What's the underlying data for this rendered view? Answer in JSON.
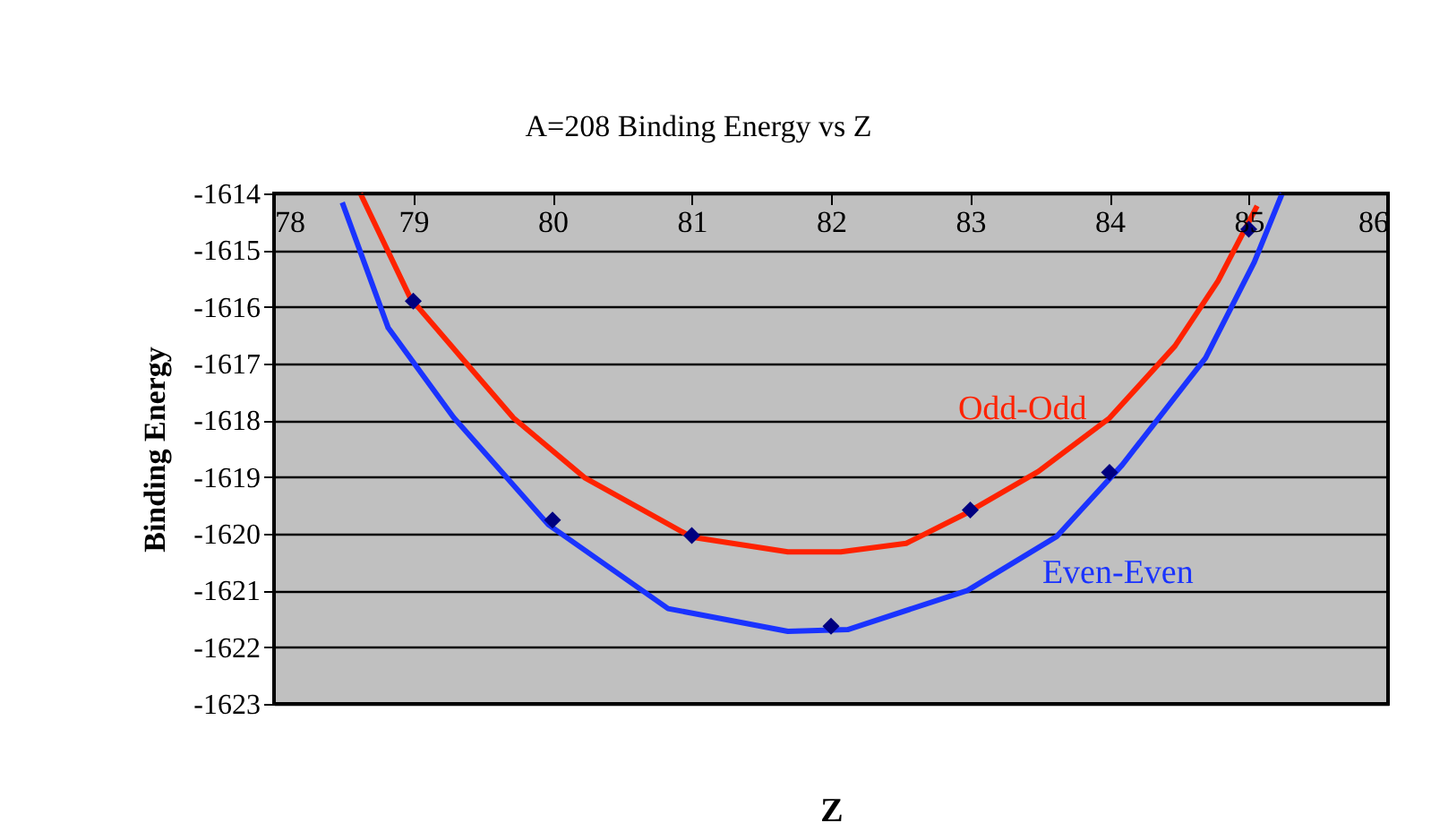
{
  "chart_data": {
    "type": "line",
    "title": "A=208 Binding Energy vs Z",
    "xlabel": "Z",
    "ylabel": "Binding Energy",
    "xlim": [
      78,
      86
    ],
    "xticks": [
      78,
      79,
      80,
      81,
      82,
      83,
      84,
      85,
      86
    ],
    "ylim": [
      -1623,
      -1614
    ],
    "yticks": [
      -1623,
      -1622,
      -1621,
      -1620,
      -1619,
      -1618,
      -1617,
      -1616,
      -1615,
      -1614
    ],
    "grid": "y",
    "series": [
      {
        "name": "Odd-Odd",
        "color": "#ff2200",
        "marker": "none",
        "x": [
          78.62,
          78.98,
          79.72,
          80.23,
          81.0,
          81.69,
          82.07,
          82.54,
          82.97,
          83.49,
          84.0,
          84.47,
          84.78,
          85.06
        ],
        "values": [
          -1614.0,
          -1615.85,
          -1617.96,
          -1619.01,
          -1620.06,
          -1620.32,
          -1620.32,
          -1620.17,
          -1619.64,
          -1618.9,
          -1617.96,
          -1616.69,
          -1615.54,
          -1614.22
        ]
      },
      {
        "name": "Even-Even",
        "color": "#1a33ff",
        "marker": "none",
        "x": [
          78.49,
          78.82,
          79.29,
          79.97,
          80.83,
          81.69,
          82.12,
          82.98,
          83.62,
          84.09,
          84.69,
          85.04,
          85.24
        ],
        "values": [
          -1614.16,
          -1616.37,
          -1617.95,
          -1619.84,
          -1621.32,
          -1621.72,
          -1621.69,
          -1621.0,
          -1620.05,
          -1618.79,
          -1616.9,
          -1615.21,
          -1614.0
        ]
      },
      {
        "type": "scatter",
        "color": "#000080",
        "marker": "diamond",
        "x": [
          79,
          80,
          81,
          82,
          83,
          84,
          85
        ],
        "values": [
          -1615.9,
          -1619.76,
          -1620.03,
          -1621.63,
          -1619.58,
          -1618.92,
          -1614.63
        ]
      }
    ]
  }
}
